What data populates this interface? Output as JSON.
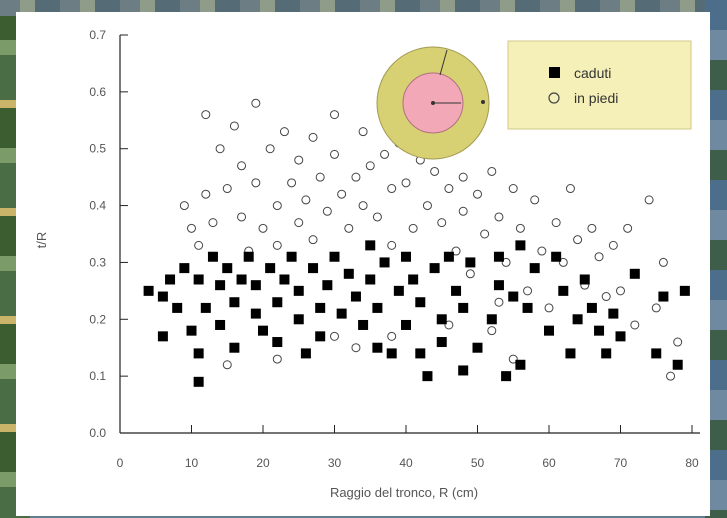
{
  "chart_data": {
    "type": "scatter",
    "title": "",
    "xlabel": "Raggio del tronco, R (cm)",
    "ylabel": "t/R",
    "xlim": [
      0,
      80
    ],
    "ylim": [
      0,
      0.7
    ],
    "x_ticks": [
      "0",
      "10",
      "20",
      "30",
      "40",
      "50",
      "60",
      "70",
      "80"
    ],
    "y_ticks": [
      "0.0",
      "0.1",
      "0.2",
      "0.3",
      "0.4",
      "0.5",
      "0.6",
      "0.7"
    ],
    "legend_position": "top-right",
    "series": [
      {
        "name": "caduti",
        "marker": "filled-square",
        "color": "#000000",
        "points": [
          [
            4,
            0.25
          ],
          [
            6,
            0.17
          ],
          [
            6,
            0.24
          ],
          [
            7,
            0.27
          ],
          [
            8,
            0.22
          ],
          [
            9,
            0.29
          ],
          [
            10,
            0.18
          ],
          [
            11,
            0.14
          ],
          [
            11,
            0.09
          ],
          [
            11,
            0.27
          ],
          [
            12,
            0.22
          ],
          [
            13,
            0.31
          ],
          [
            14,
            0.19
          ],
          [
            14,
            0.26
          ],
          [
            15,
            0.29
          ],
          [
            16,
            0.15
          ],
          [
            16,
            0.23
          ],
          [
            17,
            0.27
          ],
          [
            18,
            0.31
          ],
          [
            19,
            0.21
          ],
          [
            19,
            0.26
          ],
          [
            20,
            0.18
          ],
          [
            21,
            0.29
          ],
          [
            22,
            0.23
          ],
          [
            22,
            0.16
          ],
          [
            23,
            0.27
          ],
          [
            24,
            0.31
          ],
          [
            25,
            0.2
          ],
          [
            25,
            0.25
          ],
          [
            26,
            0.14
          ],
          [
            27,
            0.29
          ],
          [
            28,
            0.22
          ],
          [
            28,
            0.17
          ],
          [
            29,
            0.26
          ],
          [
            30,
            0.31
          ],
          [
            31,
            0.21
          ],
          [
            32,
            0.28
          ],
          [
            33,
            0.24
          ],
          [
            34,
            0.19
          ],
          [
            35,
            0.33
          ],
          [
            35,
            0.27
          ],
          [
            36,
            0.15
          ],
          [
            36,
            0.22
          ],
          [
            37,
            0.3
          ],
          [
            38,
            0.14
          ],
          [
            39,
            0.25
          ],
          [
            40,
            0.31
          ],
          [
            40,
            0.19
          ],
          [
            41,
            0.27
          ],
          [
            42,
            0.23
          ],
          [
            42,
            0.14
          ],
          [
            43,
            0.1
          ],
          [
            44,
            0.29
          ],
          [
            45,
            0.2
          ],
          [
            45,
            0.16
          ],
          [
            46,
            0.31
          ],
          [
            47,
            0.25
          ],
          [
            48,
            0.11
          ],
          [
            48,
            0.22
          ],
          [
            49,
            0.3
          ],
          [
            50,
            0.15
          ],
          [
            52,
            0.2
          ],
          [
            53,
            0.31
          ],
          [
            53,
            0.26
          ],
          [
            54,
            0.1
          ],
          [
            55,
            0.24
          ],
          [
            56,
            0.33
          ],
          [
            56,
            0.12
          ],
          [
            57,
            0.22
          ],
          [
            58,
            0.29
          ],
          [
            60,
            0.18
          ],
          [
            61,
            0.31
          ],
          [
            62,
            0.25
          ],
          [
            63,
            0.14
          ],
          [
            64,
            0.2
          ],
          [
            65,
            0.27
          ],
          [
            66,
            0.22
          ],
          [
            67,
            0.18
          ],
          [
            68,
            0.14
          ],
          [
            69,
            0.21
          ],
          [
            70,
            0.17
          ],
          [
            72,
            0.28
          ],
          [
            75,
            0.14
          ],
          [
            76,
            0.24
          ],
          [
            78,
            0.12
          ],
          [
            79,
            0.25
          ]
        ]
      },
      {
        "name": "in piedi",
        "marker": "open-circle",
        "color": "#444444",
        "points": [
          [
            9,
            0.4
          ],
          [
            10,
            0.36
          ],
          [
            11,
            0.33
          ],
          [
            12,
            0.42
          ],
          [
            12,
            0.56
          ],
          [
            13,
            0.37
          ],
          [
            14,
            0.5
          ],
          [
            15,
            0.29
          ],
          [
            15,
            0.43
          ],
          [
            16,
            0.54
          ],
          [
            17,
            0.38
          ],
          [
            17,
            0.47
          ],
          [
            18,
            0.32
          ],
          [
            19,
            0.58
          ],
          [
            19,
            0.44
          ],
          [
            20,
            0.36
          ],
          [
            21,
            0.5
          ],
          [
            22,
            0.4
          ],
          [
            22,
            0.33
          ],
          [
            23,
            0.53
          ],
          [
            24,
            0.44
          ],
          [
            25,
            0.37
          ],
          [
            25,
            0.48
          ],
          [
            26,
            0.41
          ],
          [
            27,
            0.34
          ],
          [
            27,
            0.52
          ],
          [
            28,
            0.45
          ],
          [
            29,
            0.39
          ],
          [
            30,
            0.49
          ],
          [
            30,
            0.56
          ],
          [
            31,
            0.42
          ],
          [
            32,
            0.36
          ],
          [
            33,
            0.45
          ],
          [
            34,
            0.4
          ],
          [
            34,
            0.53
          ],
          [
            35,
            0.47
          ],
          [
            36,
            0.38
          ],
          [
            37,
            0.49
          ],
          [
            38,
            0.43
          ],
          [
            38,
            0.33
          ],
          [
            39,
            0.51
          ],
          [
            40,
            0.44
          ],
          [
            41,
            0.36
          ],
          [
            42,
            0.48
          ],
          [
            43,
            0.4
          ],
          [
            44,
            0.46
          ],
          [
            45,
            0.5
          ],
          [
            45,
            0.37
          ],
          [
            46,
            0.43
          ],
          [
            47,
            0.32
          ],
          [
            48,
            0.45
          ],
          [
            48,
            0.39
          ],
          [
            49,
            0.28
          ],
          [
            50,
            0.42
          ],
          [
            51,
            0.35
          ],
          [
            52,
            0.46
          ],
          [
            52,
            0.18
          ],
          [
            53,
            0.38
          ],
          [
            54,
            0.3
          ],
          [
            55,
            0.43
          ],
          [
            55,
            0.13
          ],
          [
            56,
            0.36
          ],
          [
            57,
            0.25
          ],
          [
            58,
            0.41
          ],
          [
            59,
            0.32
          ],
          [
            60,
            0.22
          ],
          [
            61,
            0.37
          ],
          [
            62,
            0.3
          ],
          [
            63,
            0.43
          ],
          [
            64,
            0.34
          ],
          [
            65,
            0.26
          ],
          [
            66,
            0.36
          ],
          [
            67,
            0.31
          ],
          [
            68,
            0.24
          ],
          [
            69,
            0.33
          ],
          [
            70,
            0.25
          ],
          [
            71,
            0.36
          ],
          [
            72,
            0.19
          ],
          [
            74,
            0.41
          ],
          [
            75,
            0.22
          ],
          [
            76,
            0.3
          ],
          [
            77,
            0.1
          ],
          [
            78,
            0.16
          ],
          [
            30,
            0.17
          ],
          [
            33,
            0.15
          ],
          [
            38,
            0.17
          ],
          [
            15,
            0.12
          ],
          [
            22,
            0.13
          ],
          [
            46,
            0.19
          ],
          [
            53,
            0.23
          ]
        ]
      }
    ]
  }
}
